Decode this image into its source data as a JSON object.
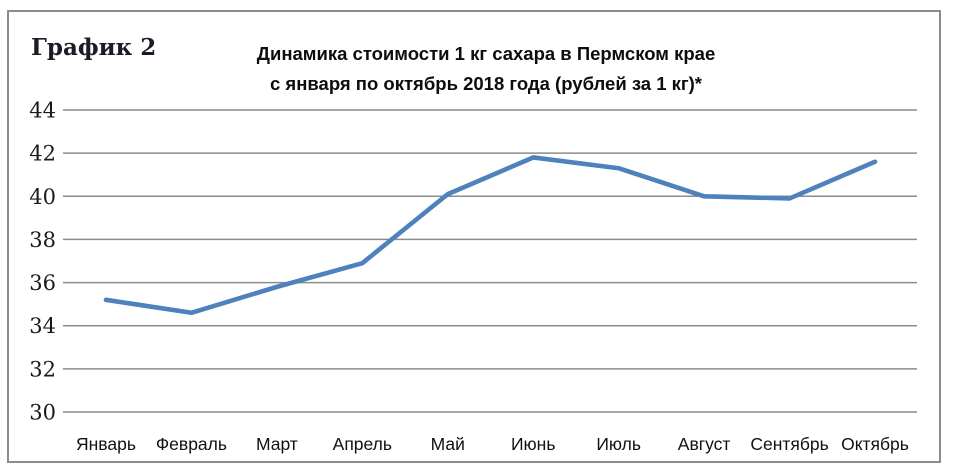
{
  "figure_label": "График 2",
  "chart_data": {
    "type": "line",
    "title": "Динамика стоимости 1 кг сахара в Пермском крае с января по октябрь 2018 года (рублей за 1 кг)*",
    "title_lines": [
      "Динамика стоимости 1 кг сахара в Пермском крае",
      "с января по октябрь 2018 года (рублей за 1 кг)*"
    ],
    "categories": [
      "Январь",
      "Февраль",
      "Март",
      "Апрель",
      "Май",
      "Июнь",
      "Июль",
      "Август",
      "Сентябрь",
      "Октябрь"
    ],
    "values": [
      35.2,
      34.6,
      35.8,
      36.9,
      40.1,
      41.8,
      41.3,
      40.0,
      39.9,
      41.6
    ],
    "xlabel": "",
    "ylabel": "",
    "ylim": [
      30,
      44
    ],
    "ytick_step": 2,
    "yticks": [
      30,
      32,
      34,
      36,
      38,
      40,
      42,
      44
    ],
    "grid": true,
    "legend": false,
    "colors": {
      "line": "#4F81BD",
      "gridline": "#8C8C8C",
      "frame_border": "#8C8C8C",
      "text": "#1A1A1A"
    }
  }
}
